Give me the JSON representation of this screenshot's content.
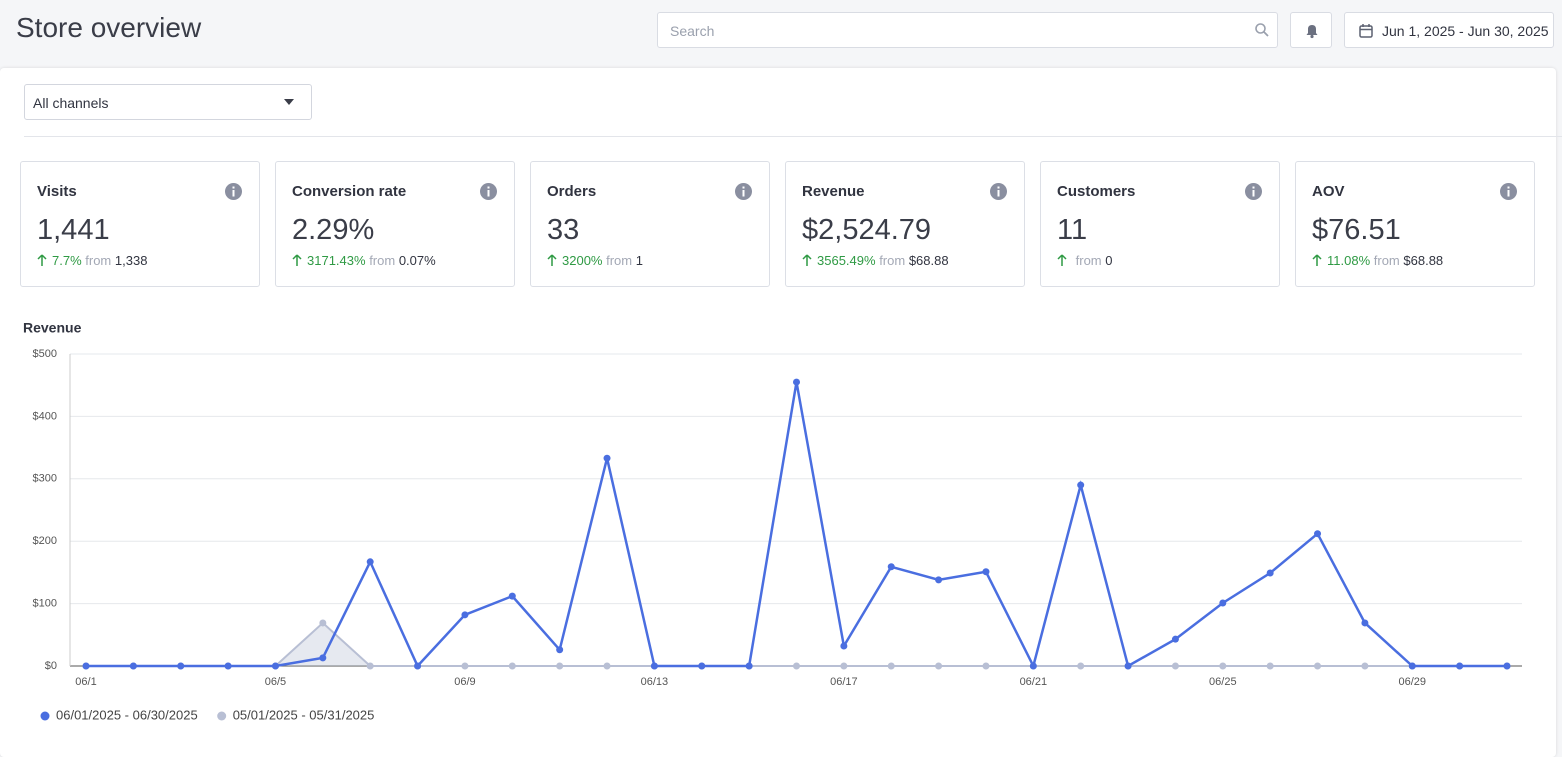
{
  "header": {
    "title": "Store overview",
    "search_placeholder": "Search",
    "date_range": "Jun 1, 2025 - Jun 30, 2025"
  },
  "filter": {
    "channel": "All channels"
  },
  "kpis": [
    {
      "label": "Visits",
      "value": "1,441",
      "change": "7.7%",
      "from_label": "from",
      "previous": "1,338"
    },
    {
      "label": "Conversion rate",
      "value": "2.29%",
      "change": "3171.43%",
      "from_label": "from",
      "previous": "0.07%"
    },
    {
      "label": "Orders",
      "value": "33",
      "change": "3200%",
      "from_label": "from",
      "previous": "1"
    },
    {
      "label": "Revenue",
      "value": "$2,524.79",
      "change": "3565.49%",
      "from_label": "from",
      "previous": "$68.88"
    },
    {
      "label": "Customers",
      "value": "11",
      "from_label": "from",
      "previous": "0"
    },
    {
      "label": "AOV",
      "value": "$76.51",
      "change": "11.08%",
      "from_label": "from",
      "previous": "$68.88"
    }
  ],
  "chart_data": {
    "type": "line",
    "title": "Revenue",
    "categories": [
      "06/1",
      null,
      null,
      null,
      "06/5",
      null,
      null,
      null,
      "06/9",
      null,
      null,
      null,
      "06/13",
      null,
      null,
      null,
      "06/17",
      null,
      null,
      null,
      "06/21",
      null,
      null,
      null,
      "06/25",
      null,
      null,
      null,
      "06/29",
      null,
      null
    ],
    "series": [
      {
        "name": "06/01/2025 - 06/30/2025",
        "color": "#4a6ee0",
        "values": [
          0,
          0,
          0,
          0,
          0,
          13,
          167,
          0,
          82,
          112,
          26,
          333,
          0,
          0,
          0,
          455,
          32,
          159,
          138,
          151,
          0,
          290,
          0,
          43,
          101,
          149,
          212,
          69,
          0,
          0,
          0
        ]
      },
      {
        "name": "05/01/2025 - 05/31/2025",
        "color": "#b8bfd4",
        "area": true,
        "values": [
          0,
          0,
          0,
          0,
          0,
          69,
          0,
          0,
          0,
          0,
          0,
          0,
          0,
          0,
          0,
          0,
          0,
          0,
          0,
          0,
          0,
          0,
          0,
          0,
          0,
          0,
          0,
          0,
          0,
          0,
          0
        ]
      }
    ],
    "ylim": [
      0,
      500
    ],
    "yticks": [
      {
        "value": 0,
        "label": "$0"
      },
      {
        "value": 100,
        "label": "$100"
      },
      {
        "value": 200,
        "label": "$200"
      },
      {
        "value": 300,
        "label": "$300"
      },
      {
        "value": 400,
        "label": "$400"
      },
      {
        "value": 500,
        "label": "$500"
      }
    ],
    "grid": true
  }
}
